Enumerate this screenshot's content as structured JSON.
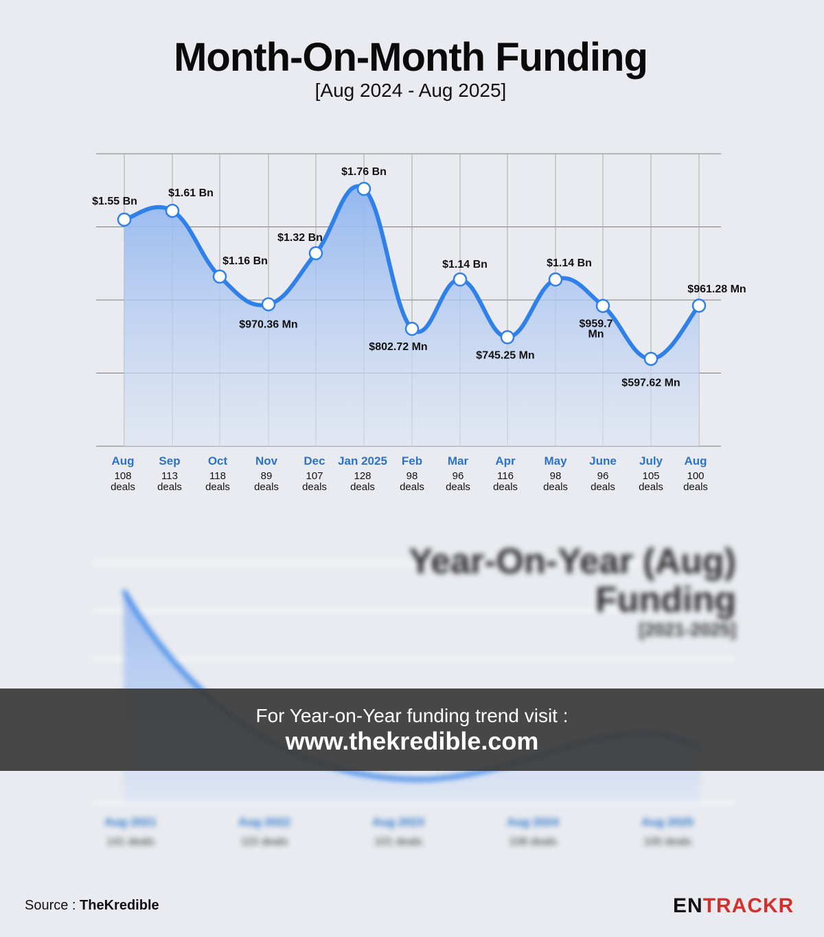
{
  "header": {
    "title": "Month-On-Month Funding",
    "subtitle": "[Aug 2024 - Aug 2025]"
  },
  "chart_data": {
    "type": "area",
    "title": "Month-On-Month Funding",
    "subtitle": "[Aug 2024 - Aug 2025]",
    "categories": [
      "Aug",
      "Sep",
      "Oct",
      "Nov",
      "Dec",
      "Jan 2025",
      "Feb",
      "Mar",
      "Apr",
      "May",
      "June",
      "July",
      "Aug"
    ],
    "deals": [
      "108",
      "113",
      "118",
      "89",
      "107",
      "128",
      "98",
      "96",
      "116",
      "98",
      "96",
      "105",
      "100"
    ],
    "deals_unit": "deals",
    "values_usd_bn": [
      1.55,
      1.61,
      1.16,
      0.97036,
      1.32,
      1.76,
      0.80272,
      1.14,
      0.74525,
      1.14,
      0.9597,
      0.59762,
      0.96128
    ],
    "value_labels": [
      "$1.55 Bn",
      "$1.61 Bn",
      "$1.16 Bn",
      "$970.36 Mn",
      "$1.32 Bn",
      "$1.76 Bn",
      "$802.72 Mn",
      "$1.14 Bn",
      "$745.25 Mn",
      "$1.14 Bn",
      "$959.7 Mn",
      "$597.62 Mn",
      "$961.28 Mn"
    ],
    "ylim": [
      0,
      2.0
    ],
    "grid": true,
    "colors": {
      "line": "#2f80e8",
      "fill_top": "#8fb4ef",
      "fill_bottom": "#dde5f4",
      "month_label": "#2a73c9"
    }
  },
  "background_teaser": {
    "title_line1": "Year-On-Year (Aug)",
    "title_line2": "Funding",
    "subtitle": "[2021-2025]",
    "x_labels": [
      "Aug 2021",
      "Aug 2022",
      "Aug 2023",
      "Aug 2024",
      "Aug 2025"
    ],
    "deals": [
      "141 deals",
      "115 deals",
      "101 deals",
      "108 deals",
      "100 deals"
    ]
  },
  "banner": {
    "line1": "For Year-on-Year funding trend visit :",
    "line2": "www.thekredible.com"
  },
  "footer": {
    "source_label": "Source : ",
    "source_name": "TheKredible",
    "logo_part1": "EN",
    "logo_part2": "TRACKR"
  }
}
